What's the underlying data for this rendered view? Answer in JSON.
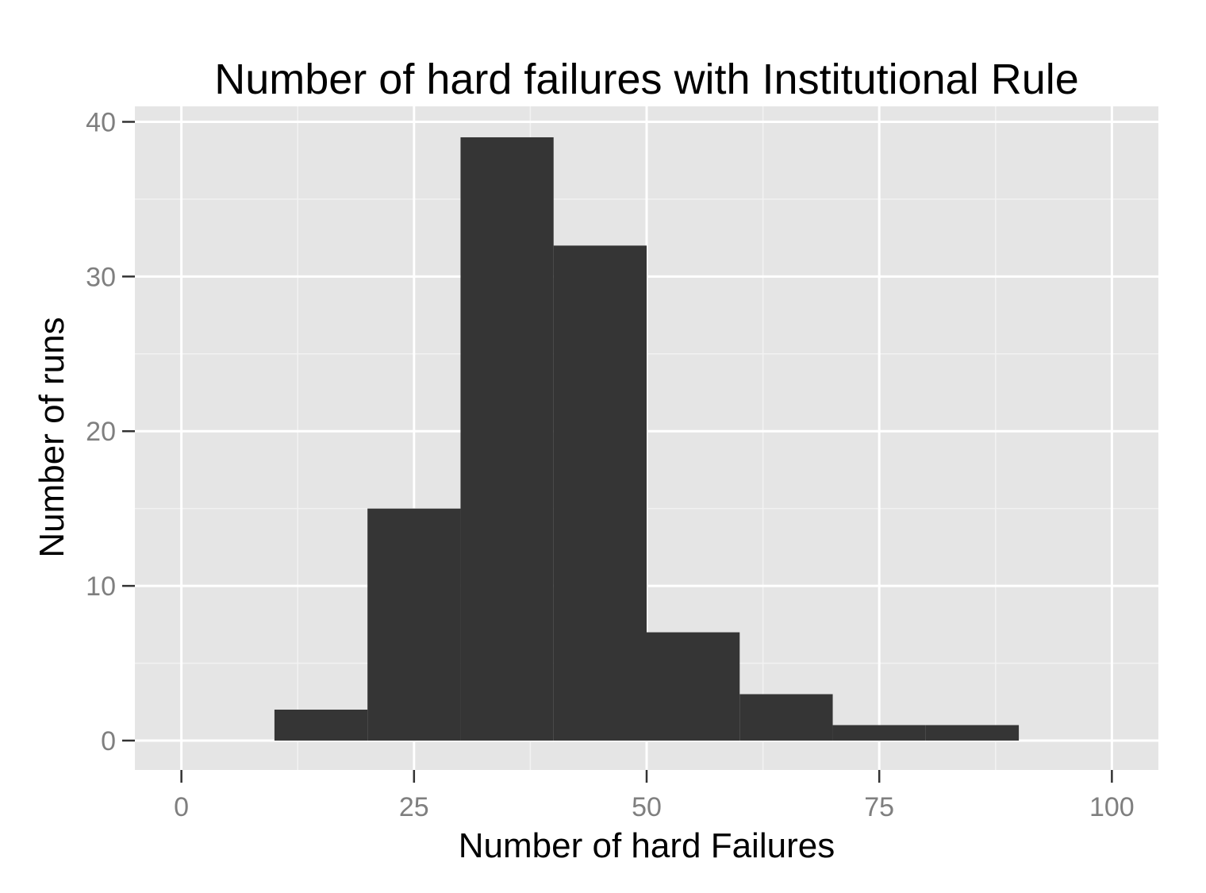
{
  "chart_data": {
    "type": "bar",
    "subtype": "histogram",
    "title": "Number of hard failures with Institutional Rule",
    "xlabel": "Number of hard Failures",
    "ylabel": "Number of runs",
    "xlim": [
      -5,
      105
    ],
    "ylim": [
      -1.9,
      41
    ],
    "x_ticks": [
      0,
      25,
      50,
      75,
      100
    ],
    "y_ticks": [
      0,
      10,
      20,
      30,
      40
    ],
    "grid": true,
    "bins": [
      {
        "x0": 10,
        "x1": 20,
        "count": 2
      },
      {
        "x0": 20,
        "x1": 30,
        "count": 15
      },
      {
        "x0": 30,
        "x1": 40,
        "count": 39
      },
      {
        "x0": 40,
        "x1": 50,
        "count": 32
      },
      {
        "x0": 50,
        "x1": 60,
        "count": 7
      },
      {
        "x0": 60,
        "x1": 70,
        "count": 3
      },
      {
        "x0": 70,
        "x1": 80,
        "count": 1
      },
      {
        "x0": 80,
        "x1": 90,
        "count": 1
      }
    ],
    "colors": {
      "panel_background": "#e5e5e5",
      "grid_major": "#ffffff",
      "grid_minor": "#f2f2f2",
      "bar_fill": "#353535",
      "tick_label": "#7f7f7f"
    }
  }
}
